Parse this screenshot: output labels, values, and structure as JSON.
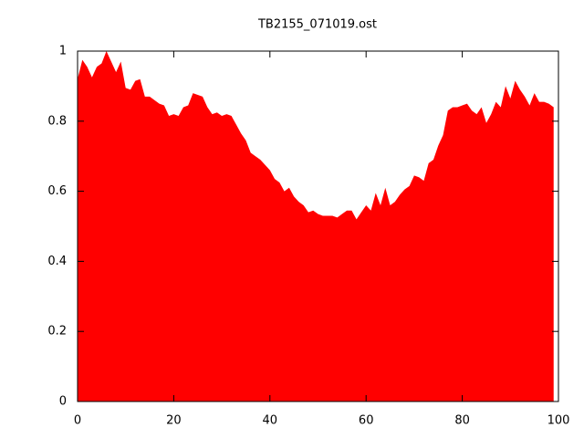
{
  "chart_data": {
    "type": "area",
    "title": "TB2155_071019.ost",
    "color": "#ff0000",
    "x": [
      0,
      1,
      2,
      3,
      4,
      5,
      6,
      7,
      8,
      9,
      10,
      11,
      12,
      13,
      14,
      15,
      16,
      17,
      18,
      19,
      20,
      21,
      22,
      23,
      24,
      25,
      26,
      27,
      28,
      29,
      30,
      31,
      32,
      33,
      34,
      35,
      36,
      37,
      38,
      39,
      40,
      41,
      42,
      43,
      44,
      45,
      46,
      47,
      48,
      49,
      50,
      51,
      52,
      53,
      54,
      55,
      56,
      57,
      58,
      59,
      60,
      61,
      62,
      63,
      64,
      65,
      66,
      67,
      68,
      69,
      70,
      71,
      72,
      73,
      74,
      75,
      76,
      77,
      78,
      79,
      80,
      81,
      82,
      83,
      84,
      85,
      86,
      87,
      88,
      89,
      90,
      91,
      92,
      93,
      94,
      95,
      96,
      97,
      98,
      99
    ],
    "values": [
      0.92,
      0.975,
      0.955,
      0.925,
      0.955,
      0.965,
      1.0,
      0.97,
      0.94,
      0.97,
      0.895,
      0.89,
      0.915,
      0.92,
      0.87,
      0.87,
      0.86,
      0.85,
      0.845,
      0.815,
      0.82,
      0.815,
      0.84,
      0.845,
      0.88,
      0.875,
      0.87,
      0.84,
      0.82,
      0.825,
      0.815,
      0.82,
      0.815,
      0.79,
      0.765,
      0.745,
      0.71,
      0.7,
      0.69,
      0.675,
      0.66,
      0.635,
      0.625,
      0.6,
      0.61,
      0.585,
      0.57,
      0.56,
      0.54,
      0.545,
      0.535,
      0.53,
      0.53,
      0.53,
      0.525,
      0.535,
      0.545,
      0.545,
      0.52,
      0.54,
      0.56,
      0.545,
      0.595,
      0.56,
      0.61,
      0.56,
      0.57,
      0.59,
      0.605,
      0.615,
      0.645,
      0.64,
      0.63,
      0.68,
      0.69,
      0.73,
      0.76,
      0.83,
      0.84,
      0.84,
      0.845,
      0.85,
      0.83,
      0.82,
      0.84,
      0.795,
      0.82,
      0.855,
      0.84,
      0.9,
      0.865,
      0.915,
      0.89,
      0.87,
      0.845,
      0.88,
      0.855,
      0.855,
      0.85,
      0.84
    ],
    "xlim": [
      0,
      100
    ],
    "xticks": [
      0,
      20,
      40,
      60,
      80,
      100
    ],
    "ylim": [
      0,
      1
    ],
    "yticks": [
      0,
      0.2,
      0.4,
      0.6,
      0.8,
      1
    ]
  }
}
